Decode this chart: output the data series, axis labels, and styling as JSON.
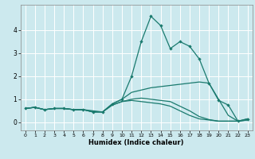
{
  "title": "",
  "xlabel": "Humidex (Indice chaleur)",
  "ylabel": "",
  "background_color": "#cce9ee",
  "grid_color": "#ffffff",
  "line_color": "#1a7a6e",
  "x_values": [
    0,
    1,
    2,
    3,
    4,
    5,
    6,
    7,
    8,
    9,
    10,
    11,
    12,
    13,
    14,
    15,
    16,
    17,
    18,
    19,
    20,
    21,
    22,
    23
  ],
  "series": [
    [
      0.6,
      0.65,
      0.55,
      0.6,
      0.6,
      0.55,
      0.55,
      0.45,
      0.45,
      0.8,
      1.0,
      2.0,
      3.5,
      4.6,
      4.2,
      3.2,
      3.5,
      3.3,
      2.75,
      1.7,
      0.95,
      0.75,
      0.05,
      0.15
    ],
    [
      0.6,
      0.65,
      0.55,
      0.6,
      0.6,
      0.55,
      0.55,
      0.5,
      0.45,
      0.8,
      1.0,
      1.3,
      1.4,
      1.5,
      1.55,
      1.6,
      1.65,
      1.7,
      1.75,
      1.7,
      1.0,
      0.3,
      0.05,
      0.15
    ],
    [
      0.6,
      0.65,
      0.55,
      0.6,
      0.6,
      0.55,
      0.55,
      0.45,
      0.45,
      0.75,
      0.9,
      1.0,
      1.05,
      1.0,
      0.95,
      0.9,
      0.7,
      0.5,
      0.25,
      0.12,
      0.05,
      0.05,
      0.05,
      0.1
    ],
    [
      0.6,
      0.65,
      0.55,
      0.6,
      0.6,
      0.55,
      0.55,
      0.45,
      0.45,
      0.75,
      0.9,
      0.95,
      0.9,
      0.85,
      0.8,
      0.7,
      0.5,
      0.3,
      0.15,
      0.1,
      0.05,
      0.05,
      0.05,
      0.1
    ]
  ],
  "ylim": [
    -0.35,
    5.1
  ],
  "yticks": [
    0,
    1,
    2,
    3,
    4
  ],
  "xlim": [
    -0.5,
    23.5
  ],
  "xticks": [
    0,
    1,
    2,
    3,
    4,
    5,
    6,
    7,
    8,
    9,
    10,
    11,
    12,
    13,
    14,
    15,
    16,
    17,
    18,
    19,
    20,
    21,
    22,
    23
  ]
}
